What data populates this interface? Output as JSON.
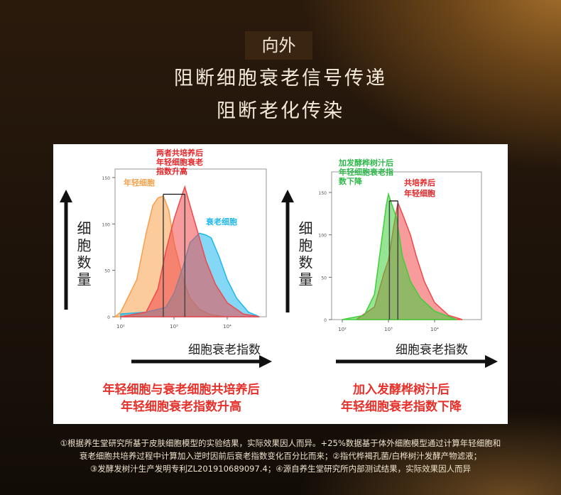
{
  "header": {
    "badge": "向外",
    "line1": "阻断细胞衰老信号传递",
    "line2": "阻断老化传染"
  },
  "axis_labels": {
    "y": "细胞数量",
    "x": "细胞衰老指数"
  },
  "captions": {
    "left": [
      "年轻细胞与衰老细胞共培养后",
      "年轻细胞衰老指数升高"
    ],
    "right": [
      "加入发酵桦树汁后",
      "年轻细胞衰老指数下降"
    ]
  },
  "footnote": [
    "①根据养生堂研究所基于皮肤细胞模型的实验结果，实际效果因人而异。+25%数据基于体外细胞模型通过计算年轻细胞和",
    "衰老细胞共培养过程中计算加入逆时因前后衰老指数变化百分比而来；②指代桦褐孔菌/白桦树汁发酵产物滤液；",
    "③发酵发树汁生产发明专利ZL201910689097.4；④源自养生堂研究所内部测试结果，实际效果因人而异"
  ],
  "chart_data": [
    {
      "type": "area",
      "xscale": "log",
      "xlim": [
        60,
        40000
      ],
      "ylim": [
        0,
        160
      ],
      "xticks": [
        "10²",
        "10³",
        "10⁴"
      ],
      "yticks": [
        "0",
        "50",
        "100",
        "150"
      ],
      "annotations": [
        "两者共培养后",
        "年轻细胞衰老",
        "指数升高"
      ],
      "markers": [
        630,
        1600
      ],
      "series": [
        {
          "name": "年轻细胞",
          "color": "#f7a04a",
          "points": [
            [
              60,
              0
            ],
            [
              100,
              5
            ],
            [
              200,
              40
            ],
            [
              300,
              90
            ],
            [
              400,
              120
            ],
            [
              500,
              128
            ],
            [
              630,
              130
            ],
            [
              800,
              115
            ],
            [
              1000,
              80
            ],
            [
              1500,
              40
            ],
            [
              2000,
              20
            ],
            [
              3000,
              8
            ],
            [
              5000,
              2
            ],
            [
              10000,
              0
            ]
          ]
        },
        {
          "name": "衰老细胞",
          "color": "#1fb8ec",
          "points": [
            [
              100,
              3
            ],
            [
              300,
              5
            ],
            [
              700,
              10
            ],
            [
              1000,
              25
            ],
            [
              1500,
              55
            ],
            [
              2000,
              80
            ],
            [
              3000,
              90
            ],
            [
              4000,
              88
            ],
            [
              5000,
              85
            ],
            [
              7000,
              65
            ],
            [
              10000,
              40
            ],
            [
              15000,
              20
            ],
            [
              25000,
              5
            ],
            [
              40000,
              0
            ]
          ]
        },
        {
          "name": "",
          "color": "#f0484a",
          "points": [
            [
              100,
              0
            ],
            [
              300,
              5
            ],
            [
              500,
              30
            ],
            [
              700,
              70
            ],
            [
              1000,
              105
            ],
            [
              1300,
              125
            ],
            [
              1600,
              140
            ],
            [
              2000,
              120
            ],
            [
              3000,
              85
            ],
            [
              4000,
              60
            ],
            [
              6000,
              35
            ],
            [
              10000,
              15
            ],
            [
              20000,
              3
            ],
            [
              40000,
              0
            ]
          ]
        }
      ]
    },
    {
      "type": "area",
      "xscale": "log",
      "xlim": [
        60,
        40000
      ],
      "ylim": [
        0,
        175
      ],
      "xticks": [
        "10²",
        "10³",
        "10⁴"
      ],
      "yticks": [
        "0",
        "50",
        "100",
        "150"
      ],
      "annotations": [
        "加发酵桦树汁后",
        "年轻细胞衰老指",
        "数下降"
      ],
      "markers": [
        1050,
        1600
      ],
      "series": [
        {
          "name": "共培养后 年轻细胞",
          "color": "#f0484a",
          "points": [
            [
              200,
              0
            ],
            [
              500,
              15
            ],
            [
              800,
              55
            ],
            [
              1000,
              70
            ],
            [
              1300,
              110
            ],
            [
              1600,
              138
            ],
            [
              2000,
              125
            ],
            [
              3000,
              100
            ],
            [
              4000,
              75
            ],
            [
              6000,
              45
            ],
            [
              10000,
              20
            ],
            [
              20000,
              5
            ],
            [
              40000,
              0
            ]
          ]
        },
        {
          "name": "",
          "color": "#3ecf3a",
          "points": [
            [
              100,
              0
            ],
            [
              300,
              5
            ],
            [
              500,
              30
            ],
            [
              700,
              90
            ],
            [
              900,
              135
            ],
            [
              1000,
              148
            ],
            [
              1200,
              135
            ],
            [
              1500,
              120
            ],
            [
              2000,
              75
            ],
            [
              3000,
              45
            ],
            [
              5000,
              25
            ],
            [
              10000,
              10
            ],
            [
              30000,
              0
            ]
          ]
        }
      ]
    }
  ]
}
